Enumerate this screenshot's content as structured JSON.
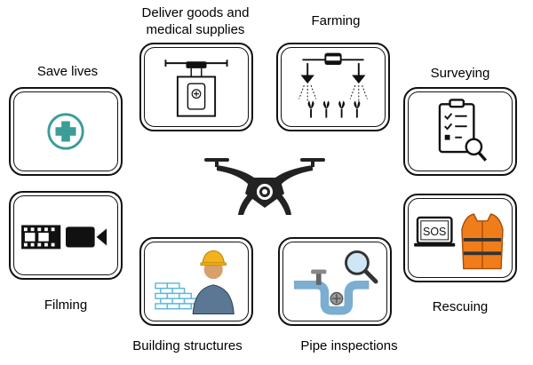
{
  "labels": {
    "deliver": "Deliver goods and\nmedical supplies",
    "farming": "Farming",
    "save_lives": "Save lives",
    "surveying": "Surveying",
    "filming": "Filming",
    "rescuing": "Rescuing",
    "building": "Building structures",
    "pipe": "Pipe inspections",
    "sos": "SOS"
  },
  "colors": {
    "teal": "#3b9c98",
    "pipe_blue": "#7baed0",
    "orange": "#f07d1a",
    "brick": "#5bb8d9",
    "dark": "#222222"
  }
}
